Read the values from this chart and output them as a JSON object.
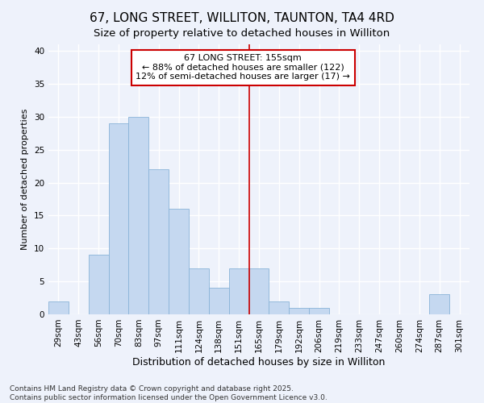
{
  "title": "67, LONG STREET, WILLITON, TAUNTON, TA4 4RD",
  "subtitle": "Size of property relative to detached houses in Williton",
  "xlabel": "Distribution of detached houses by size in Williton",
  "ylabel": "Number of detached properties",
  "categories": [
    "29sqm",
    "43sqm",
    "56sqm",
    "70sqm",
    "83sqm",
    "97sqm",
    "111sqm",
    "124sqm",
    "138sqm",
    "151sqm",
    "165sqm",
    "179sqm",
    "192sqm",
    "206sqm",
    "219sqm",
    "233sqm",
    "247sqm",
    "260sqm",
    "274sqm",
    "287sqm",
    "301sqm"
  ],
  "values": [
    2,
    0,
    9,
    29,
    30,
    22,
    16,
    7,
    4,
    7,
    7,
    2,
    1,
    1,
    0,
    0,
    0,
    0,
    0,
    3,
    0
  ],
  "bar_color": "#c5d8f0",
  "bar_edge_color": "#8ab4d8",
  "background_color": "#eef2fb",
  "grid_color": "#ffffff",
  "ylim": [
    0,
    41
  ],
  "yticks": [
    0,
    5,
    10,
    15,
    20,
    25,
    30,
    35,
    40
  ],
  "annotation_text": "67 LONG STREET: 155sqm\n← 88% of detached houses are smaller (122)\n12% of semi-detached houses are larger (17) →",
  "vline_x_index": 9.5,
  "vline_color": "#cc0000",
  "annotation_box_color": "#cc0000",
  "footnote": "Contains HM Land Registry data © Crown copyright and database right 2025.\nContains public sector information licensed under the Open Government Licence v3.0.",
  "title_fontsize": 11,
  "subtitle_fontsize": 9.5,
  "xlabel_fontsize": 9,
  "ylabel_fontsize": 8,
  "tick_fontsize": 7.5,
  "annotation_fontsize": 8,
  "footnote_fontsize": 6.5
}
